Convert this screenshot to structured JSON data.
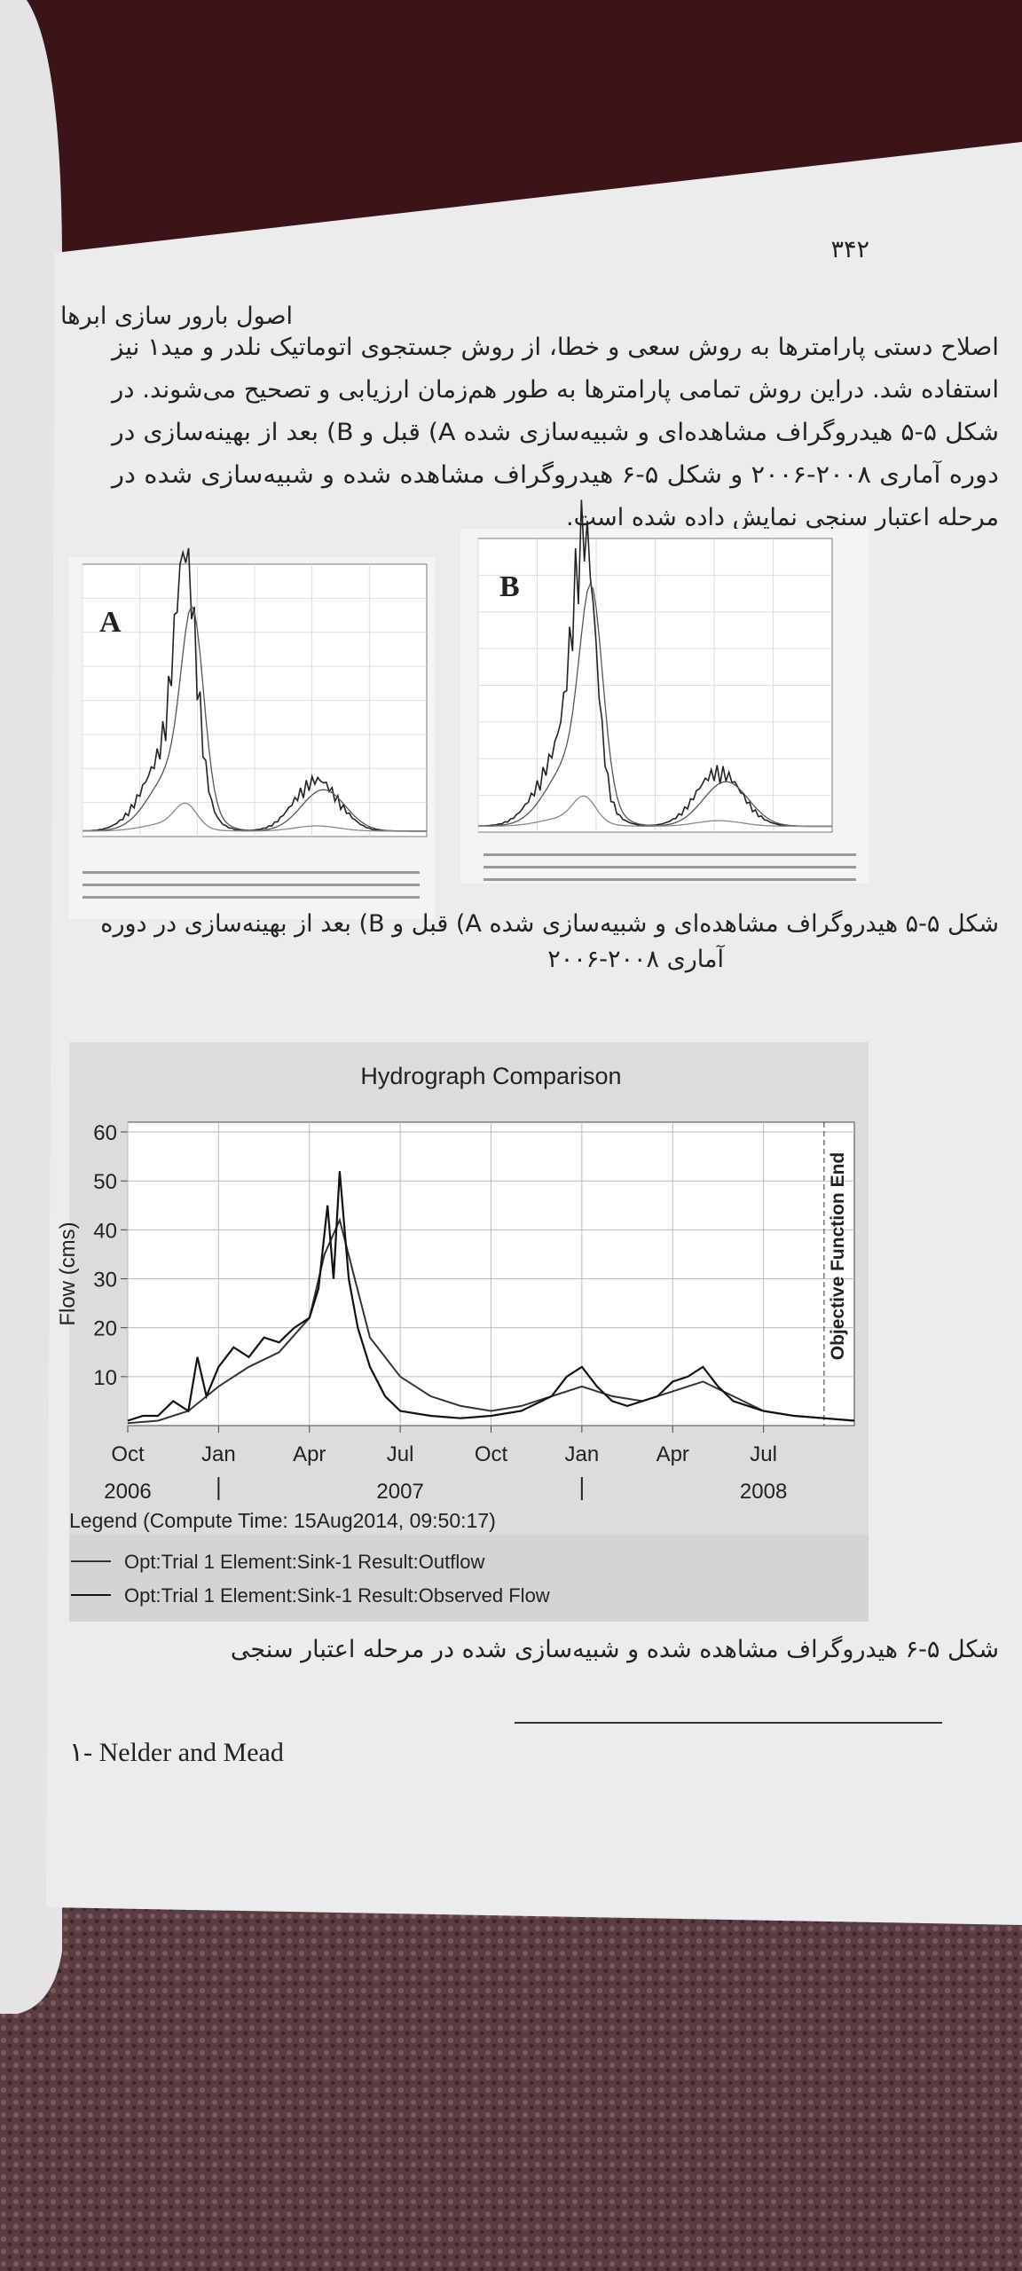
{
  "page_number": "۳۴۲",
  "header": "اصول بارور سازی ابرها",
  "paragraph": [
    "اصلاح دستی پارامترها به روش سعی و خطا، از روش جستجوی اتوماتیک نلدر و مید۱ نیز",
    "استفاده شد. دراین روش تمامی پارامترها به طور هم‌زمان ارزیابی و تصحیح می‌شوند. در",
    "شکل ۵-۵ هیدروگراف مشاهده‌ای و شبیه‌سازی شده A) قبل و B) بعد از بهینه‌سازی در",
    "دوره آماری ۲۰۰۸-۲۰۰۶ و شکل ۵-۶ هیدروگراف مشاهده شده و شبیه‌سازی شده در",
    "مرحله اعتبار سنجی نمایش داده شده است."
  ],
  "figure_5": {
    "panel_a": "A",
    "panel_b": "B",
    "caption": [
      "شکل ۵-۵ هیدروگراف مشاهده‌ای و شبیه‌سازی شده A) قبل و B) بعد از بهینه‌سازی در دوره",
      "آماری ۲۰۰۸-۲۰۰۶"
    ]
  },
  "figure_6": {
    "type": "line",
    "title": "Hydrograph Comparison",
    "y_label": "Flow (cms)",
    "annotation": "Objective Function End",
    "annotation_x": 23,
    "xlim": [
      0,
      24
    ],
    "ylim": [
      0,
      62
    ],
    "yticks": [
      10,
      20,
      30,
      40,
      50,
      60
    ],
    "xticks": [
      {
        "value": 0,
        "label": "Oct"
      },
      {
        "value": 3,
        "label": "Jan"
      },
      {
        "value": 6,
        "label": "Apr"
      },
      {
        "value": 9,
        "label": "Jul"
      },
      {
        "value": 12,
        "label": "Oct"
      },
      {
        "value": 15,
        "label": "Jan"
      },
      {
        "value": 18,
        "label": "Apr"
      },
      {
        "value": 21,
        "label": "Jul"
      }
    ],
    "year_ticks": [
      {
        "value": 0,
        "label": "2006"
      },
      {
        "value": 9,
        "label": "2007"
      },
      {
        "value": 21,
        "label": "2008"
      }
    ],
    "grid": true,
    "legend_title": "Legend (Compute Time: 15Aug2014, 09:50:17)",
    "series": [
      {
        "name": "Opt:Trial 1 Element:Sink-1 Result:Outflow",
        "color": "#333333",
        "x": [
          0,
          1,
          2,
          3,
          4,
          5,
          6,
          6.5,
          7,
          7.5,
          8,
          9,
          10,
          11,
          12,
          13,
          14,
          15,
          16,
          17,
          18,
          19,
          20,
          21,
          22,
          23,
          24
        ],
        "values": [
          0.5,
          1,
          3,
          8,
          12,
          15,
          22,
          35,
          42,
          30,
          18,
          10,
          6,
          4,
          3,
          4,
          6,
          8,
          6,
          5,
          7,
          9,
          6,
          3,
          2,
          1.5,
          1
        ]
      },
      {
        "name": "Opt:Trial 1 Element:Sink-1 Result:Observed Flow",
        "color": "#111111",
        "x": [
          0,
          0.5,
          1,
          1.5,
          2,
          2.3,
          2.6,
          3,
          3.5,
          4,
          4.5,
          5,
          5.5,
          6,
          6.3,
          6.6,
          6.8,
          7,
          7.3,
          7.6,
          8,
          8.5,
          9,
          10,
          11,
          12,
          13,
          14,
          14.5,
          15,
          15.5,
          16,
          16.5,
          17,
          17.5,
          18,
          18.5,
          19,
          19.5,
          20,
          21,
          22,
          23,
          24
        ],
        "values": [
          1,
          2,
          2,
          5,
          3,
          14,
          6,
          12,
          16,
          14,
          18,
          17,
          20,
          22,
          28,
          45,
          30,
          52,
          30,
          20,
          12,
          6,
          3,
          2,
          1.5,
          2,
          3,
          6,
          10,
          12,
          8,
          5,
          4,
          5,
          6,
          9,
          10,
          12,
          8,
          5,
          3,
          2,
          1.5,
          1
        ]
      }
    ],
    "caption": "شکل ۵-۶ هیدروگراف مشاهده شده و شبیه‌سازی شده در مرحله اعتبار سنجی"
  },
  "footnote": "۱- Nelder and Mead"
}
